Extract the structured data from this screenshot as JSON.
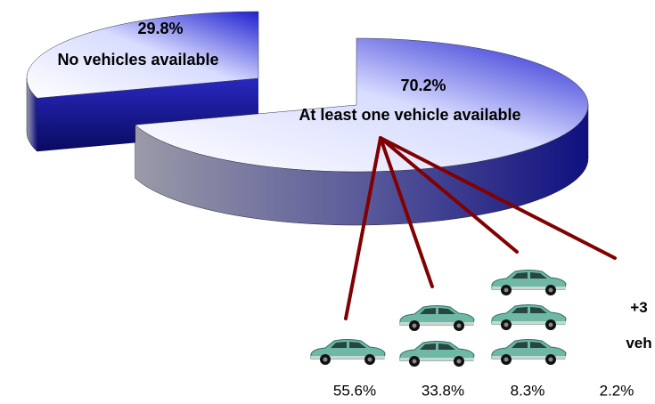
{
  "chart_data": [
    {
      "type": "pie3d",
      "categories": [
        "No vehicles available",
        "At least one vehicle available"
      ],
      "values": [
        29.8,
        70.2
      ],
      "value_labels": [
        "29.8%",
        "70.2%"
      ]
    },
    {
      "type": "breakdown",
      "categories": [
        null,
        null,
        null,
        "+3 veh"
      ],
      "values": [
        55.6,
        33.8,
        8.3,
        2.2
      ],
      "value_labels": [
        "55.6%",
        "33.8%",
        "8.3%",
        "2.2%"
      ],
      "color": "#800000"
    }
  ]
}
